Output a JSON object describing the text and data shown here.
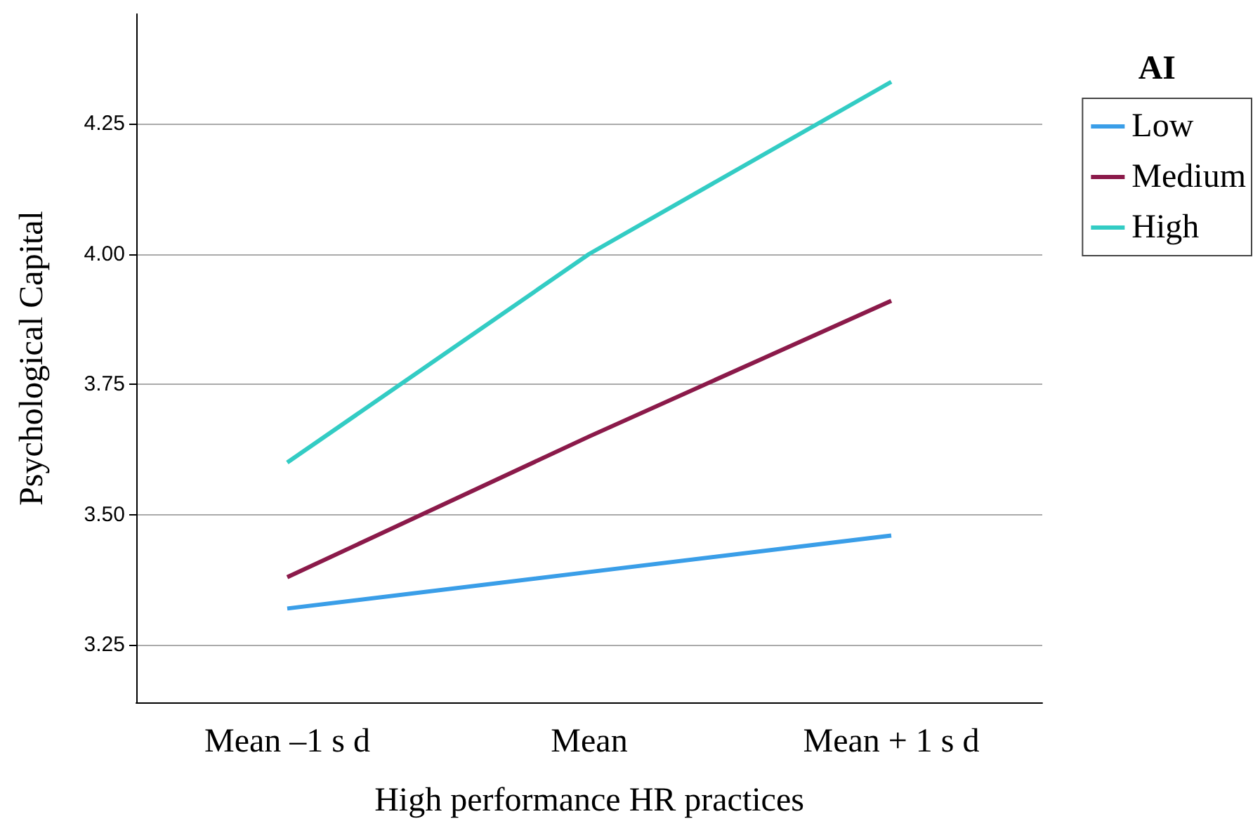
{
  "chart_data": {
    "type": "line",
    "xlabel": "High performance HR practices",
    "ylabel": "Psychological Capital",
    "legend_title": "AI",
    "categories": [
      "Mean –1 s d",
      "Mean",
      "Mean + 1 s d"
    ],
    "series": [
      {
        "name": "Low",
        "color": "#3a9ee8",
        "values": [
          3.32,
          3.39,
          3.46
        ]
      },
      {
        "name": "Medium",
        "color": "#8b1a4a",
        "values": [
          3.38,
          3.65,
          3.91
        ]
      },
      {
        "name": "High",
        "color": "#33ccc4",
        "values": [
          3.6,
          4.0,
          4.33
        ]
      }
    ],
    "ylim": [
      3.14,
      4.46
    ],
    "yticks": [
      {
        "value": 3.25,
        "label": "3.25"
      },
      {
        "value": 3.5,
        "label": "3.50"
      },
      {
        "value": 3.75,
        "label": "3.75"
      },
      {
        "value": 4,
        "label": "4.00"
      },
      {
        "value": 4.25,
        "label": "4.25"
      }
    ],
    "grid": "y",
    "legend": "right",
    "marker": "none",
    "line_style": "solid"
  }
}
